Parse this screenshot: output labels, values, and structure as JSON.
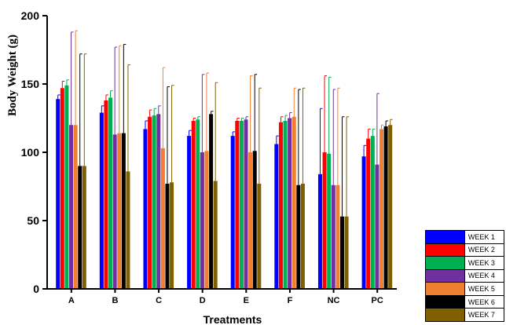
{
  "chart_data": {
    "type": "bar",
    "title": "",
    "xlabel": "Treatments",
    "ylabel": "Body Weight (g)",
    "ylim": [
      0,
      200
    ],
    "yticks": [
      "0",
      "50",
      "100",
      "150",
      "200"
    ],
    "categories": [
      "A",
      "B",
      "C",
      "D",
      "E",
      "F",
      "NC",
      "PC"
    ],
    "legend_position": "bottom-right",
    "series": [
      {
        "name": "WEEK 1",
        "color": "#0000ff",
        "values": [
          139,
          129,
          117,
          112,
          112,
          106,
          84,
          97
        ],
        "errors": [
          3,
          5,
          6,
          4,
          3,
          6,
          48,
          8
        ]
      },
      {
        "name": "WEEK 2",
        "color": "#ff0000",
        "values": [
          147,
          138,
          126,
          123,
          123,
          122,
          100,
          110
        ],
        "errors": [
          5,
          4,
          5,
          2,
          2,
          4,
          56,
          7
        ]
      },
      {
        "name": "WEEK 3",
        "color": "#00b050",
        "values": [
          149,
          140,
          127,
          124,
          123,
          123,
          99,
          112
        ],
        "errors": [
          4,
          5,
          5,
          2,
          2,
          4,
          56,
          5
        ]
      },
      {
        "name": "WEEK 4",
        "color": "#7030a0",
        "values": [
          120,
          113,
          128,
          100,
          124,
          125,
          76,
          91
        ],
        "errors": [
          68,
          64,
          6,
          57,
          2,
          4,
          70,
          52
        ]
      },
      {
        "name": "WEEK 5",
        "color": "#f08030",
        "values": [
          120,
          114,
          103,
          101,
          100,
          126,
          76,
          117
        ],
        "errors": [
          69,
          64,
          59,
          57,
          56,
          21,
          71,
          3
        ]
      },
      {
        "name": "WEEK 6",
        "color": "#000000",
        "values": [
          90,
          114,
          77,
          128,
          101,
          76,
          53,
          119
        ],
        "errors": [
          82,
          65,
          71,
          2,
          56,
          70,
          73,
          4
        ]
      },
      {
        "name": "WEEK 7",
        "color": "#7f6000",
        "values": [
          90,
          86,
          78,
          79,
          77,
          77,
          53,
          120
        ],
        "errors": [
          82,
          78,
          71,
          72,
          70,
          70,
          73,
          4
        ]
      }
    ]
  }
}
